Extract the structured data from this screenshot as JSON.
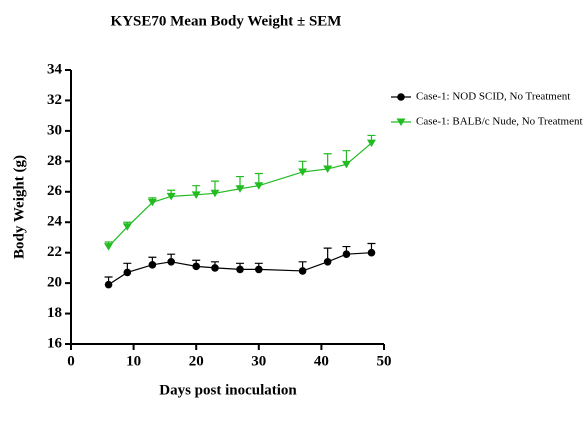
{
  "chart_data": {
    "type": "line",
    "title": "KYSE70 Mean Body Weight ± SEM",
    "x_label": "Days post inoculation",
    "y_label": "Body Weight (g)",
    "x": [
      6,
      9,
      13,
      16,
      20,
      23,
      27,
      30,
      37,
      41,
      44,
      48
    ],
    "series": [
      {
        "name": "Case-1: NOD SCID, No Treatment",
        "color": "#000000",
        "marker": "circle",
        "values": [
          19.9,
          20.7,
          21.2,
          21.4,
          21.1,
          21.0,
          20.9,
          20.9,
          20.8,
          21.4,
          21.9,
          22.0
        ],
        "errors": [
          0.5,
          0.6,
          0.5,
          0.5,
          0.4,
          0.4,
          0.4,
          0.4,
          0.6,
          0.9,
          0.5,
          0.6
        ]
      },
      {
        "name": "Case-1: BALB/c Nude, No Treatment",
        "color": "#22bb22",
        "marker": "triangle-down",
        "values": [
          22.4,
          23.7,
          25.3,
          25.7,
          25.8,
          25.9,
          26.2,
          26.4,
          27.3,
          27.5,
          27.8,
          29.2
        ],
        "errors": [
          0.3,
          0.3,
          0.3,
          0.4,
          0.6,
          0.8,
          0.8,
          0.8,
          0.7,
          1.0,
          0.9,
          0.5
        ]
      }
    ],
    "xlim": [
      0,
      50
    ],
    "xticks": [
      0,
      10,
      20,
      30,
      40,
      50
    ],
    "ylim": [
      16,
      34
    ],
    "yticks": [
      16,
      18,
      20,
      22,
      24,
      26,
      28,
      30,
      32,
      34
    ],
    "legend": "right"
  }
}
